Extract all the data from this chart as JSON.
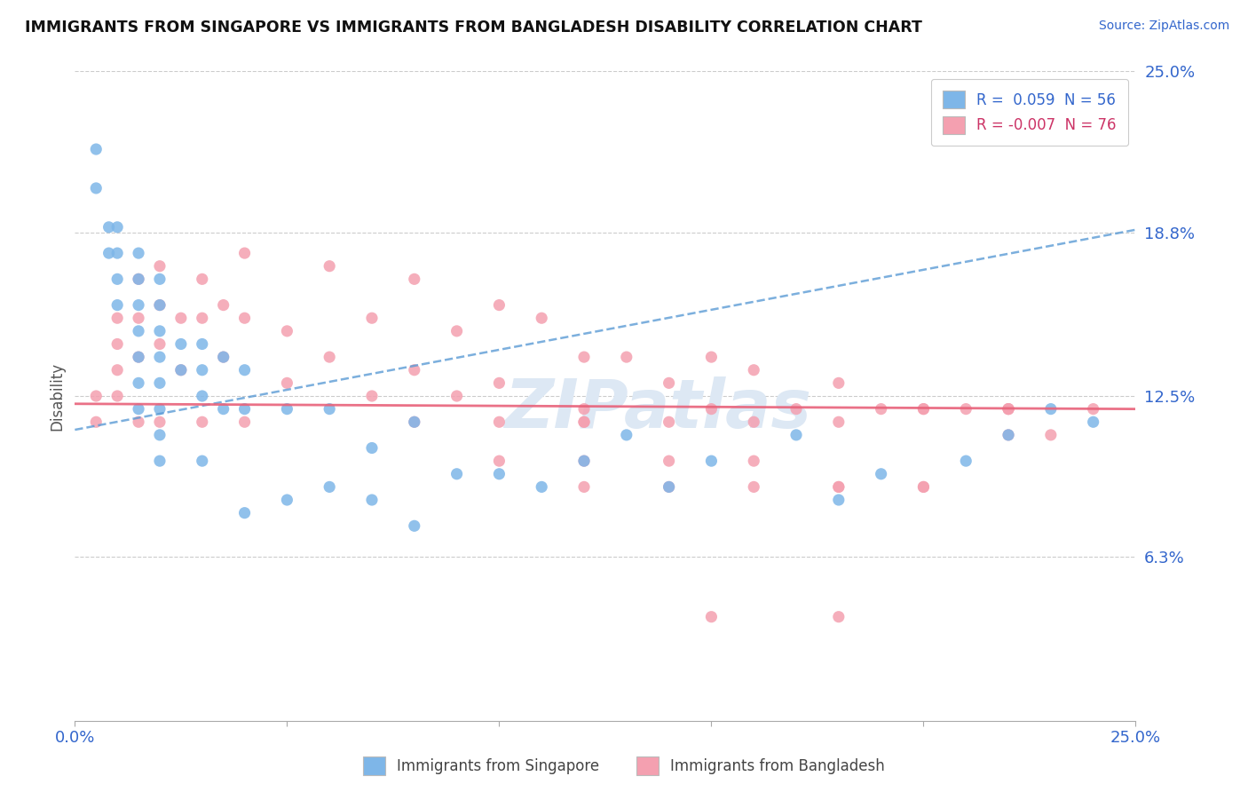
{
  "title": "IMMIGRANTS FROM SINGAPORE VS IMMIGRANTS FROM BANGLADESH DISABILITY CORRELATION CHART",
  "source": "Source: ZipAtlas.com",
  "ylabel": "Disability",
  "xlim": [
    0.0,
    0.25
  ],
  "ylim": [
    0.0,
    0.25
  ],
  "yticks": [
    0.063,
    0.125,
    0.188,
    0.25
  ],
  "ytick_labels": [
    "6.3%",
    "12.5%",
    "18.8%",
    "25.0%"
  ],
  "singapore_R": 0.059,
  "singapore_N": 56,
  "bangladesh_R": -0.007,
  "bangladesh_N": 76,
  "singapore_color": "#7EB6E8",
  "bangladesh_color": "#F4A0B0",
  "singapore_line_color": "#5B9BD5",
  "bangladesh_line_color": "#E8627A",
  "watermark": "ZIPatlas",
  "legend_label_singapore": "Immigrants from Singapore",
  "legend_label_bangladesh": "Immigrants from Bangladesh",
  "sg_trend_x0": 0.0,
  "sg_trend_y0": 0.112,
  "sg_trend_x1": 0.25,
  "sg_trend_y1": 0.189,
  "bd_trend_x0": 0.0,
  "bd_trend_y0": 0.122,
  "bd_trend_x1": 0.25,
  "bd_trend_y1": 0.12,
  "singapore_x": [
    0.005,
    0.005,
    0.008,
    0.008,
    0.01,
    0.01,
    0.01,
    0.01,
    0.015,
    0.015,
    0.015,
    0.015,
    0.015,
    0.015,
    0.015,
    0.02,
    0.02,
    0.02,
    0.02,
    0.02,
    0.02,
    0.02,
    0.02,
    0.025,
    0.025,
    0.03,
    0.03,
    0.03,
    0.03,
    0.035,
    0.035,
    0.04,
    0.04,
    0.04,
    0.05,
    0.05,
    0.06,
    0.06,
    0.07,
    0.07,
    0.08,
    0.08,
    0.09,
    0.1,
    0.11,
    0.12,
    0.13,
    0.14,
    0.15,
    0.17,
    0.18,
    0.19,
    0.21,
    0.22,
    0.23,
    0.24
  ],
  "singapore_y": [
    0.205,
    0.22,
    0.19,
    0.18,
    0.19,
    0.18,
    0.17,
    0.16,
    0.18,
    0.17,
    0.16,
    0.15,
    0.14,
    0.13,
    0.12,
    0.17,
    0.16,
    0.15,
    0.14,
    0.13,
    0.12,
    0.11,
    0.1,
    0.145,
    0.135,
    0.145,
    0.135,
    0.125,
    0.1,
    0.14,
    0.12,
    0.135,
    0.12,
    0.08,
    0.12,
    0.085,
    0.12,
    0.09,
    0.105,
    0.085,
    0.115,
    0.075,
    0.095,
    0.095,
    0.09,
    0.1,
    0.11,
    0.09,
    0.1,
    0.11,
    0.085,
    0.095,
    0.1,
    0.11,
    0.12,
    0.115
  ],
  "bangladesh_x": [
    0.005,
    0.005,
    0.01,
    0.01,
    0.01,
    0.01,
    0.015,
    0.015,
    0.015,
    0.015,
    0.02,
    0.02,
    0.02,
    0.02,
    0.025,
    0.025,
    0.03,
    0.03,
    0.03,
    0.035,
    0.035,
    0.04,
    0.04,
    0.04,
    0.05,
    0.05,
    0.06,
    0.06,
    0.07,
    0.07,
    0.08,
    0.08,
    0.09,
    0.09,
    0.1,
    0.1,
    0.11,
    0.12,
    0.12,
    0.13,
    0.14,
    0.15,
    0.15,
    0.16,
    0.17,
    0.18,
    0.19,
    0.2,
    0.21,
    0.22,
    0.22,
    0.23,
    0.24,
    0.08,
    0.1,
    0.12,
    0.14,
    0.16,
    0.18,
    0.2,
    0.22,
    0.1,
    0.12,
    0.14,
    0.16,
    0.18,
    0.2,
    0.15,
    0.18,
    0.12,
    0.16,
    0.2,
    0.14,
    0.18,
    0.22,
    0.12
  ],
  "bangladesh_y": [
    0.125,
    0.115,
    0.155,
    0.145,
    0.135,
    0.125,
    0.17,
    0.155,
    0.14,
    0.115,
    0.175,
    0.16,
    0.145,
    0.115,
    0.155,
    0.135,
    0.17,
    0.155,
    0.115,
    0.16,
    0.14,
    0.18,
    0.155,
    0.115,
    0.15,
    0.13,
    0.175,
    0.14,
    0.155,
    0.125,
    0.17,
    0.135,
    0.15,
    0.125,
    0.16,
    0.13,
    0.155,
    0.14,
    0.115,
    0.14,
    0.13,
    0.14,
    0.12,
    0.135,
    0.12,
    0.13,
    0.12,
    0.12,
    0.12,
    0.12,
    0.11,
    0.11,
    0.12,
    0.115,
    0.115,
    0.115,
    0.115,
    0.115,
    0.115,
    0.12,
    0.12,
    0.1,
    0.1,
    0.1,
    0.1,
    0.09,
    0.09,
    0.04,
    0.04,
    0.09,
    0.09,
    0.09,
    0.09,
    0.09,
    0.12,
    0.12
  ]
}
